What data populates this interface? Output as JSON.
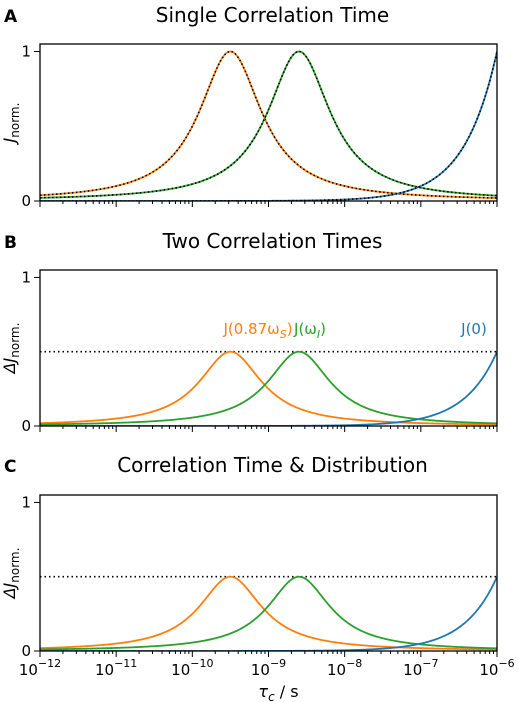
{
  "colors": {
    "orange": "#ff7f0e",
    "green": "#2ca02c",
    "blue": "#1f77b4",
    "black": "#000000"
  },
  "xaxis": {
    "label_base": "τ",
    "label_sub": "c",
    "label_tail": " / s",
    "log_scale": true,
    "range_exp": [
      -12,
      -6
    ],
    "tick_exps": [
      -12,
      -11,
      -10,
      -9,
      -8,
      -7,
      -6
    ],
    "tick_labels": [
      "10",
      "10",
      "10",
      "10",
      "10",
      "10",
      "10"
    ],
    "tick_label_exps": [
      "−12",
      "−11",
      "−10",
      "−9",
      "−8",
      "−7",
      "−6"
    ]
  },
  "chart_data": [
    {
      "type": "line",
      "panel": "A",
      "title": "Single Correlation Time",
      "ylabel_main": "J",
      "ylabel_sub": "norm.",
      "ylim": [
        0,
        1.05
      ],
      "yticks": [
        0,
        1
      ],
      "ytick_labels": [
        "0",
        "1"
      ],
      "grid": false,
      "dotted_overlay": true,
      "series": [
        {
          "key": "orange",
          "peak_log_tau": -9.5,
          "peak": 1.0,
          "width_decades": 0.5
        },
        {
          "key": "green",
          "peak_log_tau": -8.6,
          "peak": 1.0,
          "width_decades": 0.5
        },
        {
          "key": "blue",
          "rising_to": 1.0
        }
      ],
      "curve_labels": []
    },
    {
      "type": "line",
      "panel": "B",
      "title": "Two Correlation Times",
      "ylabel_main": "ΔJ",
      "ylabel_sub": "norm.",
      "ylim": [
        0,
        1.05
      ],
      "yticks": [
        0,
        1
      ],
      "ytick_labels": [
        "0",
        "1"
      ],
      "grid": false,
      "dotted_overlay": false,
      "reference_line_y": 0.5,
      "series": [
        {
          "key": "orange",
          "peak_log_tau": -9.5,
          "peak": 0.5,
          "width_decades": 0.5
        },
        {
          "key": "green",
          "peak_log_tau": -8.6,
          "peak": 0.5,
          "width_decades": 0.5
        },
        {
          "key": "blue",
          "rising_to": 0.5
        }
      ],
      "curve_labels": [
        {
          "key": "orange",
          "main": "J(0.87ω",
          "sub": "S",
          "tail": ")"
        },
        {
          "key": "green",
          "main": "J(ω",
          "sub": "I",
          "tail": ")"
        },
        {
          "key": "blue",
          "main": "J(0)",
          "sub": "",
          "tail": ""
        }
      ]
    },
    {
      "type": "line",
      "panel": "C",
      "title": "Correlation Time & Distribution",
      "ylabel_main": "ΔJ",
      "ylabel_sub": "norm.",
      "ylim": [
        0,
        1.05
      ],
      "yticks": [
        0,
        1
      ],
      "ytick_labels": [
        "0",
        "1"
      ],
      "grid": false,
      "dotted_overlay": false,
      "reference_line_y": 0.5,
      "series": [
        {
          "key": "orange",
          "peak_log_tau": -9.5,
          "peak": 0.5,
          "width_decades": 0.5
        },
        {
          "key": "green",
          "peak_log_tau": -8.6,
          "peak": 0.5,
          "width_decades": 0.5
        },
        {
          "key": "blue",
          "rising_to": 0.5
        }
      ],
      "curve_labels": []
    }
  ]
}
